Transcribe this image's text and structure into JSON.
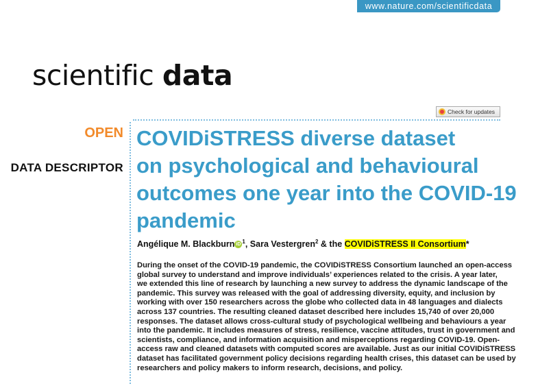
{
  "header": {
    "url": "www.nature.com/scientificdata",
    "logo_light": "scientific",
    "logo_bold": "data",
    "check_updates": "Check for updates"
  },
  "labels": {
    "open": "OPEN",
    "type": "DATA DESCRIPTOR"
  },
  "title": [
    "COVIDiSTRESS diverse dataset",
    "on psychological and behavioural",
    "outcomes one year into the COVID-19",
    "pandemic"
  ],
  "authors": {
    "a1": "Angélique M. Blackburn",
    "a1_sup": "1",
    "sep": ", Sara Vestergren",
    "a2_sup": "2",
    "and": " & the ",
    "consortium": "COVIDiSTRESS II Consortium",
    "star": "*",
    "orcid": "iD"
  },
  "abstract": [
    "During the onset of the COVID-19 pandemic, the COVIDiSTRESS Consortium launched an open-access",
    "global survey to understand and improve individuals’ experiences related to the crisis. A year later,",
    "we extended this line of research by launching a new survey to address the dynamic landscape of the",
    "pandemic. This survey was released with the goal of addressing diversity, equity, and inclusion by",
    "working with over 150 researchers across the globe who collected data in 48 languages and dialects",
    "across 137 countries. The resulting cleaned dataset described here includes 15,740 of over 20,000",
    "responses. The dataset allows cross-cultural study of psychological wellbeing and behaviours a year",
    "into the pandemic. It includes measures of stress, resilience, vaccine attitudes, trust in government and",
    "scientists, compliance, and information acquisition and misperceptions regarding COVID-19. Open-",
    "access raw and cleaned datasets with computed scores are available. Just as our initial COVIDiSTRESS",
    "dataset has facilitated government policy decisions regarding health crises, this dataset can be used by",
    "researchers and policy makers to inform research, decisions, and policy."
  ]
}
